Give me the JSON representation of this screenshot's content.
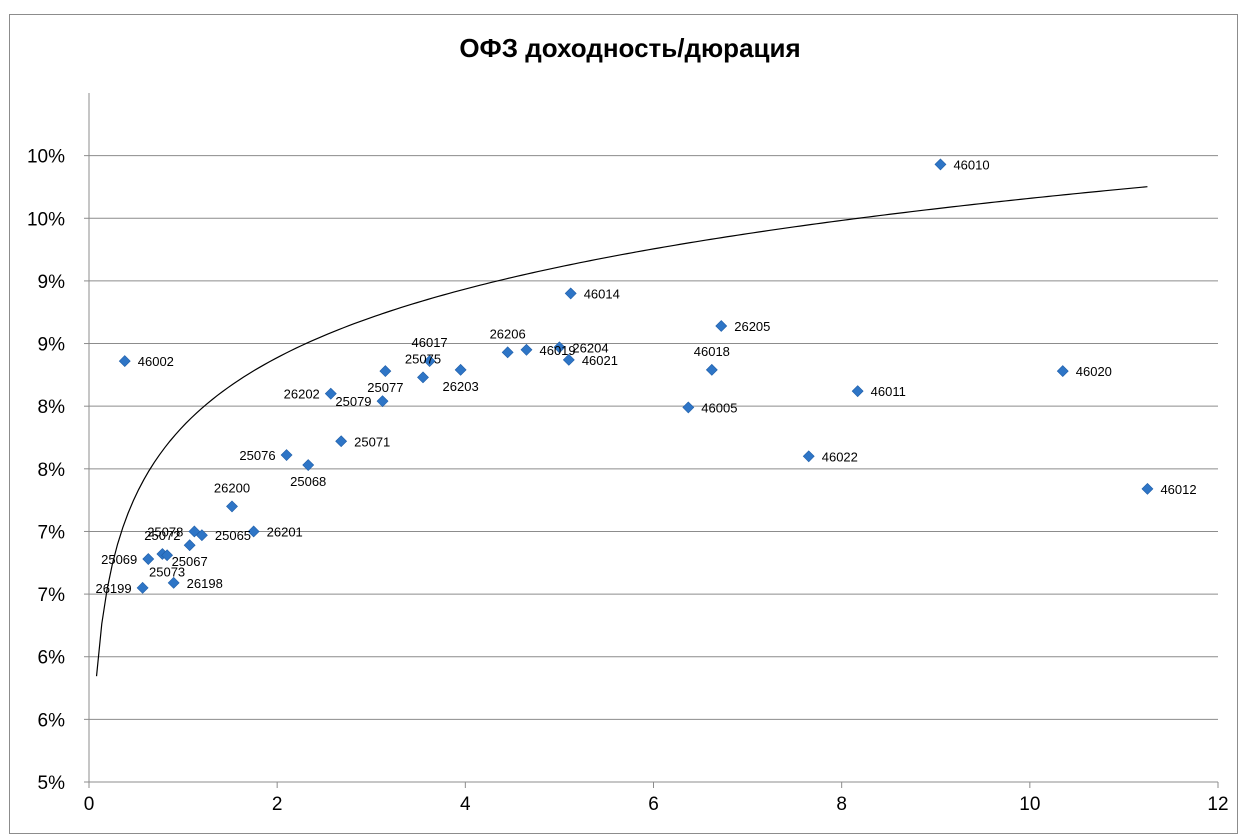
{
  "chart_data": {
    "type": "scatter",
    "title": "ОФЗ доходность/дюрация",
    "xlabel": "",
    "ylabel": "",
    "xlim": [
      0,
      12
    ],
    "ylim": [
      0.05,
      0.105
    ],
    "x_ticks": [
      0,
      2,
      4,
      6,
      8,
      10,
      12
    ],
    "x_tick_labels": [
      "0",
      "2",
      "4",
      "6",
      "8",
      "10",
      "12"
    ],
    "y_ticks": [
      0.05,
      0.055,
      0.06,
      0.065,
      0.07,
      0.075,
      0.08,
      0.085,
      0.09,
      0.095,
      0.1
    ],
    "y_tick_labels": [
      "5%",
      "6%",
      "6%",
      "7%",
      "7%",
      "8%",
      "8%",
      "9%",
      "9%",
      "10%",
      "10%"
    ],
    "grid": "horizontal",
    "legend": "none",
    "marker_color": "#2e75c6",
    "trendline": {
      "type": "logarithmic",
      "a": 0.0784,
      "b": 0.0079,
      "x_range": [
        0.08,
        11.25
      ],
      "color": "#000000"
    },
    "points": [
      {
        "label": "46002",
        "x": 0.38,
        "y": 0.0836,
        "label_side": "right"
      },
      {
        "label": "46010",
        "x": 9.05,
        "y": 0.0993,
        "label_side": "right"
      },
      {
        "label": "46014",
        "x": 5.12,
        "y": 0.089,
        "label_side": "right"
      },
      {
        "label": "26205",
        "x": 6.72,
        "y": 0.0864,
        "label_side": "right"
      },
      {
        "label": "46018",
        "x": 6.62,
        "y": 0.0829,
        "label_side": "above"
      },
      {
        "label": "26206",
        "x": 4.45,
        "y": 0.0843,
        "label_side": "above"
      },
      {
        "label": "46019",
        "x": 4.65,
        "y": 0.0845,
        "label_side": "right"
      },
      {
        "label": "26204",
        "x": 5.0,
        "y": 0.0847,
        "label_side": "right"
      },
      {
        "label": "46021",
        "x": 5.1,
        "y": 0.0837,
        "label_side": "right"
      },
      {
        "label": "46017",
        "x": 3.62,
        "y": 0.0836,
        "label_side": "above"
      },
      {
        "label": "25077",
        "x": 3.15,
        "y": 0.0828,
        "label_side": "below"
      },
      {
        "label": "25075",
        "x": 3.55,
        "y": 0.0823,
        "label_side": "above"
      },
      {
        "label": "26203",
        "x": 3.95,
        "y": 0.0829,
        "label_side": "below"
      },
      {
        "label": "26202",
        "x": 2.57,
        "y": 0.081,
        "label_side": "left"
      },
      {
        "label": "25079",
        "x": 3.12,
        "y": 0.0804,
        "label_side": "left"
      },
      {
        "label": "25071",
        "x": 2.68,
        "y": 0.0772,
        "label_side": "right"
      },
      {
        "label": "25076",
        "x": 2.1,
        "y": 0.0761,
        "label_side": "left"
      },
      {
        "label": "25068",
        "x": 2.33,
        "y": 0.0753,
        "label_side": "below"
      },
      {
        "label": "46020",
        "x": 10.35,
        "y": 0.0828,
        "label_side": "right"
      },
      {
        "label": "46005",
        "x": 6.37,
        "y": 0.0799,
        "label_side": "right"
      },
      {
        "label": "46011",
        "x": 8.17,
        "y": 0.0812,
        "label_side": "right"
      },
      {
        "label": "46022",
        "x": 7.65,
        "y": 0.076,
        "label_side": "right"
      },
      {
        "label": "46012",
        "x": 11.25,
        "y": 0.0734,
        "label_side": "right"
      },
      {
        "label": "26200",
        "x": 1.52,
        "y": 0.072,
        "label_side": "above"
      },
      {
        "label": "25078",
        "x": 1.12,
        "y": 0.07,
        "label_side": "left"
      },
      {
        "label": "25065",
        "x": 1.2,
        "y": 0.0697,
        "label_side": "right"
      },
      {
        "label": "26201",
        "x": 1.75,
        "y": 0.07,
        "label_side": "right"
      },
      {
        "label": "25067",
        "x": 1.07,
        "y": 0.0689,
        "label_side": "below"
      },
      {
        "label": "25072",
        "x": 0.78,
        "y": 0.0682,
        "label_side": "above"
      },
      {
        "label": "25073",
        "x": 0.83,
        "y": 0.0681,
        "label_side": "below"
      },
      {
        "label": "25069",
        "x": 0.63,
        "y": 0.0678,
        "label_side": "left"
      },
      {
        "label": "26198",
        "x": 0.9,
        "y": 0.0659,
        "label_side": "right"
      },
      {
        "label": "26199",
        "x": 0.57,
        "y": 0.0655,
        "label_side": "left"
      }
    ]
  }
}
